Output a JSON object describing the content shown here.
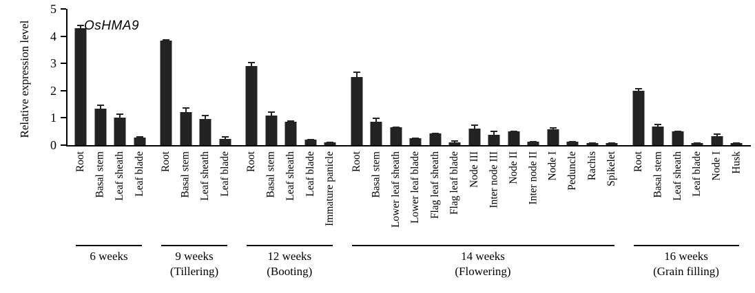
{
  "chart_data": {
    "type": "bar",
    "title": "OsHMA9",
    "ylabel": "Relative expression level",
    "ylim": [
      0,
      5
    ],
    "y_ticks": [
      0,
      1,
      2,
      3,
      4,
      5
    ],
    "bar_color": "#232323",
    "grid": false,
    "legend": "none",
    "groups": [
      {
        "stage": "6 weeks",
        "substage": "",
        "categories": [
          "Root",
          "Basal stem",
          "Leaf sheath",
          "Leaf blade"
        ],
        "values": [
          4.3,
          1.35,
          1.0,
          0.28
        ],
        "errors": [
          0.12,
          0.13,
          0.15,
          0.05
        ]
      },
      {
        "stage": "9 weeks",
        "substage": "(Tillering)",
        "categories": [
          "Root",
          "Basal stem",
          "Leaf sheath",
          "Leaf blade"
        ],
        "values": [
          3.85,
          1.22,
          0.97,
          0.23
        ],
        "errors": [
          0.05,
          0.16,
          0.15,
          0.09
        ]
      },
      {
        "stage": "12 weeks",
        "substage": "(Booting)",
        "categories": [
          "Root",
          "Basal stem",
          "Leaf sheath",
          "Leaf blade",
          "Immature panicle"
        ],
        "values": [
          2.9,
          1.08,
          0.85,
          0.2,
          0.1
        ],
        "errors": [
          0.15,
          0.15,
          0.07,
          0.04,
          0.02
        ]
      },
      {
        "stage": "14 weeks",
        "substage": "(Flowering)",
        "categories": [
          "Root",
          "Basal stem",
          "Lower leaf sheath",
          "Lower leaf blade",
          "Flag leaf sheath",
          "Flag leaf blade",
          "Node III",
          "Inter node III",
          "Node II",
          "Inter node II",
          "Node I",
          "Peduncle",
          "Rachis",
          "Spikelet"
        ],
        "values": [
          2.5,
          0.85,
          0.65,
          0.25,
          0.43,
          0.1,
          0.6,
          0.38,
          0.5,
          0.13,
          0.57,
          0.12,
          0.07,
          0.07
        ],
        "errors": [
          0.2,
          0.15,
          0.04,
          0.04,
          0.03,
          0.07,
          0.16,
          0.14,
          0.03,
          0.02,
          0.08,
          0.03,
          0.02,
          0.02
        ]
      },
      {
        "stage": "16 weeks",
        "substage": "(Grain filling)",
        "categories": [
          "Root",
          "Basal stem",
          "Leaf sheath",
          "Leaf blade",
          "Node I",
          "Husk"
        ],
        "values": [
          2.0,
          0.68,
          0.5,
          0.08,
          0.32,
          0.08
        ],
        "errors": [
          0.1,
          0.1,
          0.04,
          0.02,
          0.12,
          0.02
        ]
      }
    ]
  }
}
